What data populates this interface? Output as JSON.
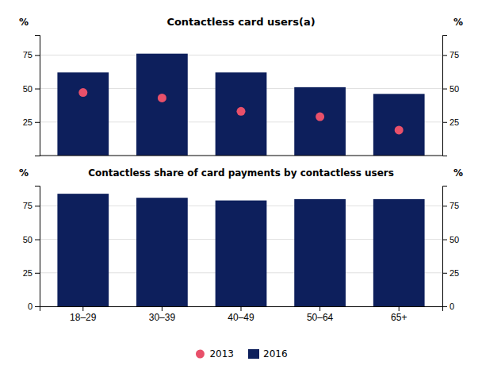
{
  "chart_data": [
    {
      "type": "bar",
      "title": "Contactless card users(a)",
      "categories": [
        "18–29",
        "30–39",
        "40–49",
        "50–64",
        "65+"
      ],
      "series": [
        {
          "name": "2013",
          "type": "scatter",
          "color": "#e8506a",
          "values": [
            47,
            43,
            33,
            29,
            19
          ]
        },
        {
          "name": "2016",
          "type": "bar",
          "color": "#0d1f5c",
          "values": [
            62,
            76,
            62,
            51,
            46
          ]
        }
      ],
      "ylabel": "%",
      "ylim": [
        0,
        90
      ],
      "yticks": [
        25,
        50,
        75
      ],
      "y2label": "%",
      "y2lim": [
        0,
        90
      ],
      "y2ticks": [
        25,
        50,
        75
      ],
      "grid": true,
      "legend": "bottom",
      "tick_labels": "y"
    },
    {
      "type": "bar",
      "title": "Contactless share of card payments by contactless users",
      "categories": [
        "18–29",
        "30–39",
        "40–49",
        "50–64",
        "65+"
      ],
      "series": [
        {
          "type": "bar",
          "color": "#0d1f5c",
          "values": [
            84,
            81,
            79,
            80,
            80
          ]
        }
      ],
      "ylabel": "%",
      "ylim": [
        0,
        90
      ],
      "yticks": [
        0,
        25,
        50,
        75
      ],
      "y2label": "%",
      "y2lim": [
        0,
        90
      ],
      "y2ticks": [
        0,
        25,
        50,
        75
      ],
      "grid": true
    }
  ]
}
